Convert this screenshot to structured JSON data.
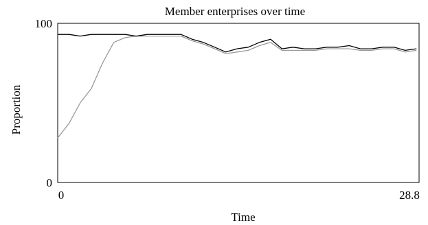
{
  "chart_data": {
    "type": "line",
    "title": "Member enterprises over time",
    "xlabel": "Time",
    "ylabel": "Proportion",
    "xlim": [
      0,
      28.8
    ],
    "ylim": [
      0,
      100
    ],
    "x_ticks": [
      {
        "value": 0,
        "label": "0"
      },
      {
        "value": 28.8,
        "label": "28.8"
      }
    ],
    "y_ticks": [
      {
        "value": 0,
        "label": "0"
      },
      {
        "value": 100,
        "label": "100"
      }
    ],
    "grid": false,
    "legend": "none",
    "x": [
      0,
      0.89,
      1.79,
      2.68,
      3.57,
      4.47,
      5.36,
      6.25,
      7.15,
      8.04,
      8.93,
      9.83,
      10.72,
      11.61,
      12.51,
      13.4,
      14.29,
      15.19,
      16.08,
      16.97,
      17.87,
      18.76,
      19.65,
      20.55,
      21.44,
      22.33,
      23.23,
      24.12,
      25.01,
      25.91,
      26.8,
      27.69,
      28.59
    ],
    "series": [
      {
        "color": "#000000",
        "values": [
          93,
          93,
          92,
          93,
          93,
          93,
          93,
          92,
          93,
          93,
          93,
          93,
          90,
          88,
          85,
          82,
          84,
          85,
          88,
          90,
          84,
          85,
          84,
          84,
          85,
          85,
          86,
          84,
          84,
          85,
          85,
          83,
          84
        ]
      },
      {
        "color": "#999999",
        "values": [
          28,
          37,
          50,
          59,
          75,
          88,
          91,
          92,
          92,
          92,
          92,
          92,
          89,
          87,
          84,
          81,
          82,
          83,
          86,
          88,
          83,
          83,
          83,
          83,
          84,
          84,
          84,
          83,
          83,
          84,
          84,
          82,
          83
        ]
      }
    ]
  }
}
